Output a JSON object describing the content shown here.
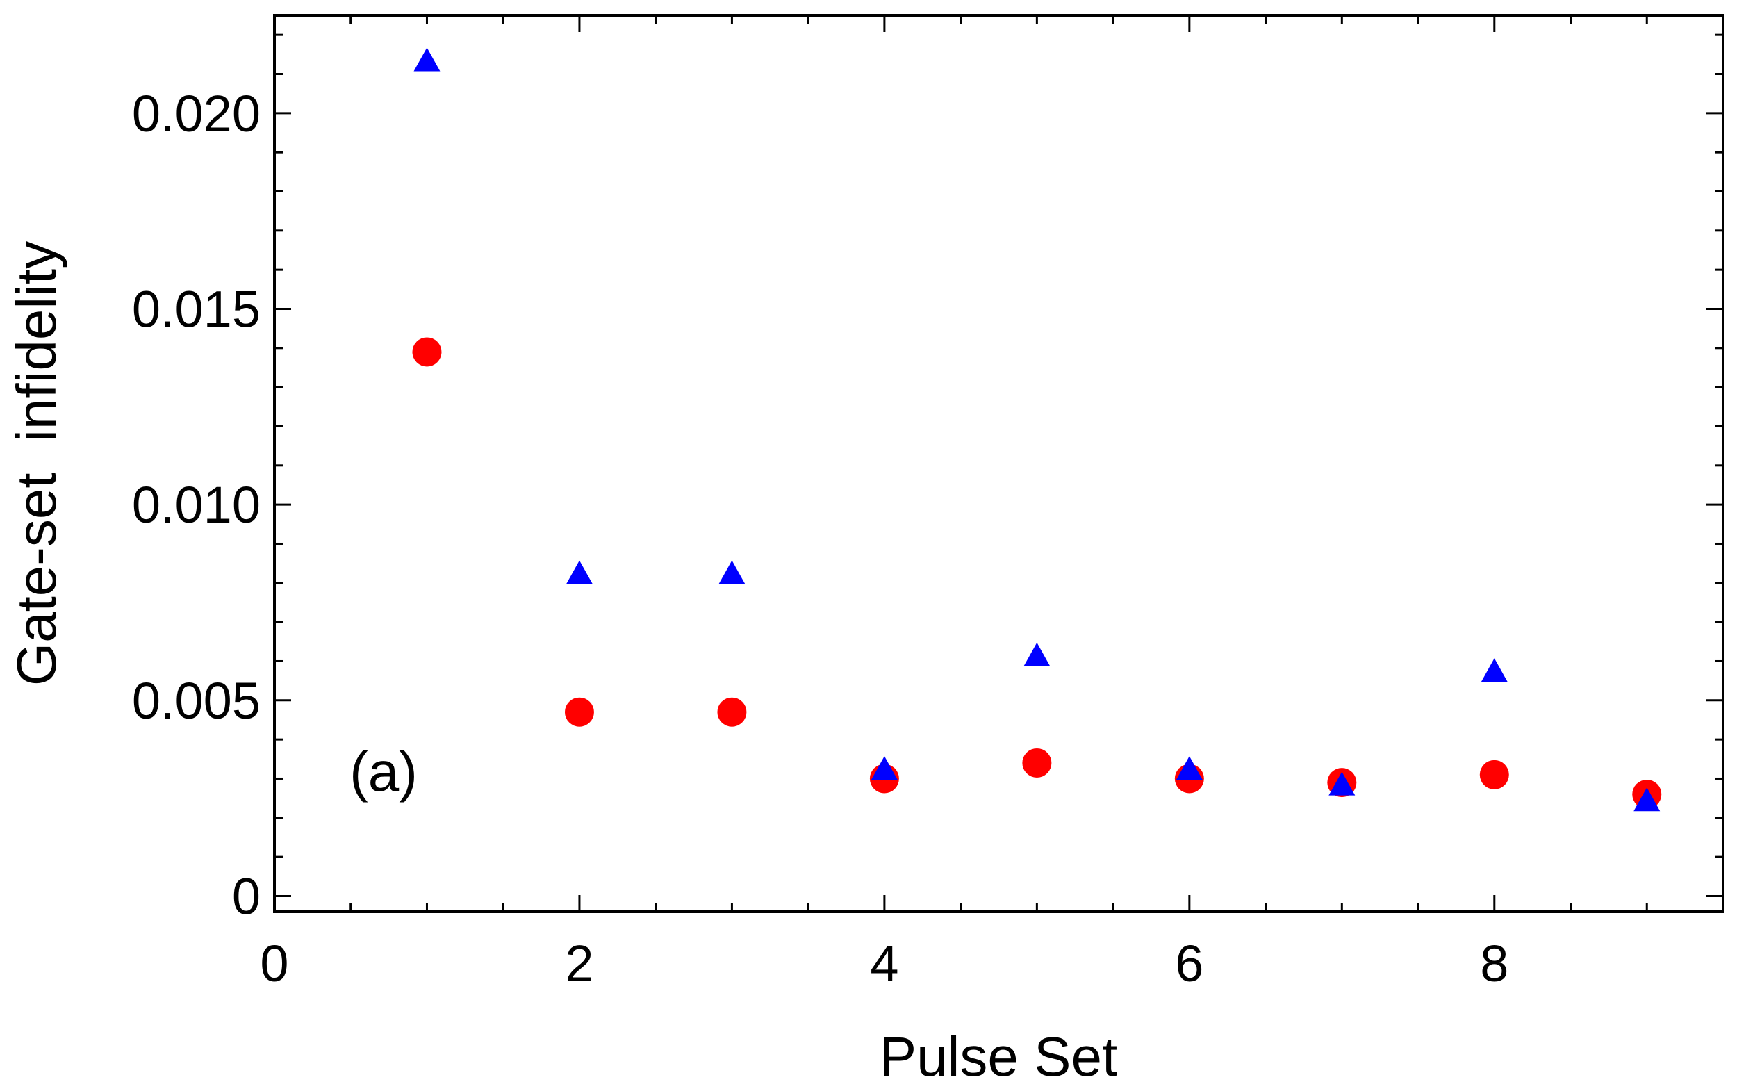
{
  "chart_data": {
    "type": "scatter",
    "xlabel": "Pulse Set",
    "ylabel": "Gate-set  infidelity",
    "annotation": "(a)",
    "xlim": [
      0,
      9.5
    ],
    "ylim": [
      -0.0004,
      0.0225
    ],
    "xticks": [
      0,
      2,
      4,
      6,
      8
    ],
    "xtick_labels": [
      "0",
      "2",
      "4",
      "6",
      "8"
    ],
    "yticks": [
      0,
      0.005,
      0.01,
      0.015,
      0.02
    ],
    "ytick_labels": [
      "0",
      "0.005",
      "0.010",
      "0.015",
      "0.020"
    ],
    "grid": false,
    "series": [
      {
        "marker": "circle",
        "color": "#ff0000",
        "x": [
          1,
          2,
          3,
          4,
          5,
          6,
          7,
          8,
          9
        ],
        "y": [
          0.0139,
          0.0047,
          0.0047,
          0.003,
          0.0034,
          0.003,
          0.0029,
          0.0031,
          0.0026
        ]
      },
      {
        "marker": "triangle",
        "color": "#0000ff",
        "x": [
          1,
          2,
          3,
          4,
          5,
          6,
          7,
          8,
          9
        ],
        "y": [
          0.0213,
          0.0082,
          0.0082,
          0.0032,
          0.0061,
          0.0032,
          0.0028,
          0.0057,
          0.0024
        ]
      }
    ]
  }
}
